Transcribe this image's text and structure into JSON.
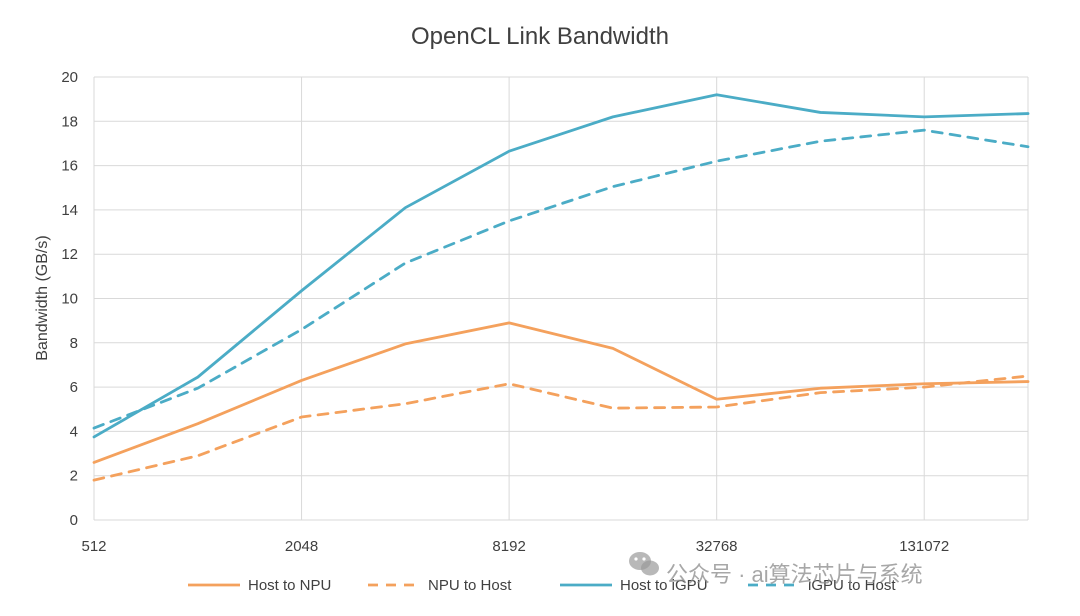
{
  "chart_data": {
    "type": "line",
    "title": "OpenCL Link Bandwidth",
    "xlabel": "",
    "ylabel": "Bandwidth (GB/s)",
    "x_scale": "log2",
    "x": [
      512,
      1024,
      2048,
      4096,
      8192,
      16384,
      32768,
      65536,
      131072,
      262144
    ],
    "x_tick_labels": [
      "512",
      "2048",
      "8192",
      "32768",
      "131072"
    ],
    "x_tick_values": [
      512,
      2048,
      8192,
      32768,
      131072
    ],
    "ylim": [
      0,
      20
    ],
    "y_ticks": [
      0,
      2,
      4,
      6,
      8,
      10,
      12,
      14,
      16,
      18,
      20
    ],
    "grid": "both",
    "legend_position": "bottom",
    "series": [
      {
        "name": "Host to NPU",
        "color": "#F4A15D",
        "dash": "solid",
        "values": [
          2.6,
          4.35,
          6.3,
          7.95,
          8.9,
          7.75,
          5.45,
          5.95,
          6.15,
          6.25
        ]
      },
      {
        "name": "NPU to Host",
        "color": "#F4A15D",
        "dash": "dashed",
        "values": [
          1.8,
          2.9,
          4.65,
          5.25,
          6.15,
          5.05,
          5.1,
          5.75,
          6.0,
          6.5
        ]
      },
      {
        "name": "Host to iGPU",
        "color": "#4BACC6",
        "dash": "solid",
        "values": [
          3.75,
          6.45,
          10.35,
          14.1,
          16.65,
          18.2,
          19.2,
          18.4,
          18.2,
          18.35
        ]
      },
      {
        "name": "iGPU to Host",
        "color": "#4BACC6",
        "dash": "dashed",
        "values": [
          4.15,
          5.95,
          8.6,
          11.6,
          13.5,
          15.05,
          16.2,
          17.1,
          17.6,
          16.85
        ]
      }
    ]
  },
  "watermark": {
    "text": "公众号 · ai算法芯片与系统",
    "icon": "wechat-icon"
  }
}
